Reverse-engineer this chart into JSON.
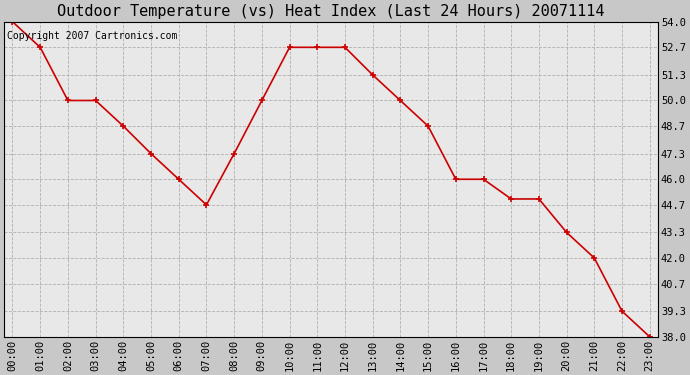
{
  "title": "Outdoor Temperature (vs) Heat Index (Last 24 Hours) 20071114",
  "copyright_text": "Copyright 2007 Cartronics.com",
  "hours": [
    "00:00",
    "01:00",
    "02:00",
    "03:00",
    "04:00",
    "05:00",
    "06:00",
    "07:00",
    "08:00",
    "09:00",
    "10:00",
    "11:00",
    "12:00",
    "13:00",
    "14:00",
    "15:00",
    "16:00",
    "17:00",
    "18:00",
    "19:00",
    "20:00",
    "21:00",
    "22:00",
    "23:00"
  ],
  "temps": [
    54.0,
    52.7,
    50.0,
    50.0,
    48.7,
    47.3,
    46.0,
    44.7,
    47.3,
    50.0,
    52.7,
    52.7,
    52.7,
    51.3,
    50.0,
    48.7,
    46.0,
    46.0,
    45.0,
    45.0,
    43.3,
    42.0,
    39.3,
    38.0
  ],
  "line_color": "#cc0000",
  "marker_color": "#cc0000",
  "fig_bg_color": "#c8c8c8",
  "plot_bg_color": "#e8e8e8",
  "grid_color": "#b0b0b0",
  "ylim_min": 38.0,
  "ylim_max": 54.0,
  "ytick_values": [
    38.0,
    39.3,
    40.7,
    42.0,
    43.3,
    44.7,
    46.0,
    47.3,
    48.7,
    50.0,
    51.3,
    52.7,
    54.0
  ],
  "title_fontsize": 11,
  "axis_fontsize": 7.5,
  "copyright_fontsize": 7
}
